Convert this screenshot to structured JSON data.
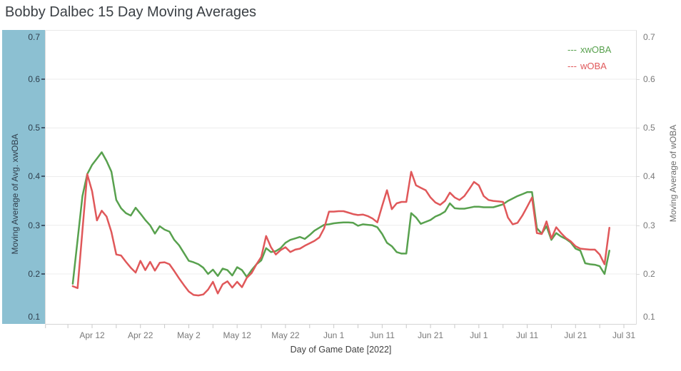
{
  "title": "Bobby Dalbec 15 Day Moving Averages",
  "legend": {
    "items": [
      {
        "sample": "---",
        "label": "xwOBA",
        "color": "#58a14e"
      },
      {
        "sample": "---",
        "label": "wOBA",
        "color": "#e0585a"
      }
    ]
  },
  "axes": {
    "left": {
      "title": "Moving Average of Avg. xwOBA",
      "ticks": [
        "0.7",
        "0.6",
        "0.5",
        "0.4",
        "0.3",
        "0.2",
        "0.1"
      ],
      "band_color": "#8cc0d2",
      "text_color": "#2f3e4c",
      "tick_mark_color": "#41586c"
    },
    "right": {
      "title": "Moving Average of wOBA",
      "ticks": [
        "0.7",
        "0.6",
        "0.5",
        "0.4",
        "0.3",
        "0.2",
        "0.1"
      ],
      "tick_mark_color": "#d9d9d9"
    },
    "x": {
      "title": "Day of Game Date [2022]",
      "ticks": [
        {
          "label": "Apr 12",
          "date": "4/12"
        },
        {
          "label": "Apr 22",
          "date": "4/22"
        },
        {
          "label": "May 2",
          "date": "5/2"
        },
        {
          "label": "May 12",
          "date": "5/12"
        },
        {
          "label": "May 22",
          "date": "5/22"
        },
        {
          "label": "Jun 1",
          "date": "6/1"
        },
        {
          "label": "Jun 11",
          "date": "6/11"
        },
        {
          "label": "Jun 21",
          "date": "6/21"
        },
        {
          "label": "Jul 1",
          "date": "7/1"
        },
        {
          "label": "Jul 11",
          "date": "7/11"
        },
        {
          "label": "Jul 21",
          "date": "7/21"
        },
        {
          "label": "Jul 31",
          "date": "7/31"
        }
      ]
    }
  },
  "chart_data": {
    "type": "line",
    "title": "Bobby Dalbec 15 Day Moving Averages",
    "xlabel": "Day of Game Date [2022]",
    "ylabel_left": "Moving Average of Avg. xwOBA",
    "ylabel_right": "Moving Average of wOBA",
    "ylim": [
      0.1,
      0.7
    ],
    "x_domain_dates": [
      "4/2",
      "8/2"
    ],
    "grid": true,
    "gridline_color": "#ececec",
    "border_color": "#d4d4d4",
    "legend_position": "top-right",
    "series": [
      {
        "name": "xwOBA",
        "axis": "left",
        "color": "#58a14e",
        "points": [
          [
            "4/8",
            0.18
          ],
          [
            "4/9",
            0.27
          ],
          [
            "4/10",
            0.36
          ],
          [
            "4/11",
            0.405
          ],
          [
            "4/12",
            0.424
          ],
          [
            "4/13",
            0.437
          ],
          [
            "4/14",
            0.45
          ],
          [
            "4/15",
            0.432
          ],
          [
            "4/16",
            0.41
          ],
          [
            "4/17",
            0.352
          ],
          [
            "4/18",
            0.335
          ],
          [
            "4/19",
            0.325
          ],
          [
            "4/20",
            0.32
          ],
          [
            "4/21",
            0.336
          ],
          [
            "4/22",
            0.324
          ],
          [
            "4/23",
            0.311
          ],
          [
            "4/24",
            0.3
          ],
          [
            "4/25",
            0.283
          ],
          [
            "4/26",
            0.298
          ],
          [
            "4/27",
            0.291
          ],
          [
            "4/28",
            0.287
          ],
          [
            "4/29",
            0.27
          ],
          [
            "4/30",
            0.259
          ],
          [
            "5/1",
            0.243
          ],
          [
            "5/2",
            0.227
          ],
          [
            "5/3",
            0.224
          ],
          [
            "5/4",
            0.22
          ],
          [
            "5/5",
            0.213
          ],
          [
            "5/6",
            0.2
          ],
          [
            "5/7",
            0.209
          ],
          [
            "5/8",
            0.196
          ],
          [
            "5/9",
            0.211
          ],
          [
            "5/10",
            0.208
          ],
          [
            "5/11",
            0.197
          ],
          [
            "5/12",
            0.214
          ],
          [
            "5/13",
            0.208
          ],
          [
            "5/14",
            0.194
          ],
          [
            "5/15",
            0.208
          ],
          [
            "5/16",
            0.22
          ],
          [
            "5/17",
            0.228
          ],
          [
            "5/18",
            0.253
          ],
          [
            "5/19",
            0.245
          ],
          [
            "5/20",
            0.247
          ],
          [
            "5/21",
            0.253
          ],
          [
            "5/22",
            0.264
          ],
          [
            "5/23",
            0.27
          ],
          [
            "5/24",
            0.273
          ],
          [
            "5/25",
            0.276
          ],
          [
            "5/26",
            0.272
          ],
          [
            "5/27",
            0.28
          ],
          [
            "5/28",
            0.289
          ],
          [
            "5/29",
            0.295
          ],
          [
            "5/30",
            0.301
          ],
          [
            "5/31",
            0.302
          ],
          [
            "6/1",
            0.304
          ],
          [
            "6/2",
            0.305
          ],
          [
            "6/3",
            0.306
          ],
          [
            "6/4",
            0.306
          ],
          [
            "6/5",
            0.305
          ],
          [
            "6/6",
            0.299
          ],
          [
            "6/7",
            0.302
          ],
          [
            "6/8",
            0.301
          ],
          [
            "6/9",
            0.3
          ],
          [
            "6/10",
            0.296
          ],
          [
            "6/11",
            0.282
          ],
          [
            "6/12",
            0.264
          ],
          [
            "6/13",
            0.257
          ],
          [
            "6/14",
            0.245
          ],
          [
            "6/15",
            0.242
          ],
          [
            "6/16",
            0.242
          ],
          [
            "6/17",
            0.325
          ],
          [
            "6/18",
            0.316
          ],
          [
            "6/19",
            0.303
          ],
          [
            "6/20",
            0.307
          ],
          [
            "6/21",
            0.311
          ],
          [
            "6/22",
            0.318
          ],
          [
            "6/23",
            0.322
          ],
          [
            "6/24",
            0.328
          ],
          [
            "6/25",
            0.345
          ],
          [
            "6/26",
            0.335
          ],
          [
            "6/27",
            0.334
          ],
          [
            "6/28",
            0.334
          ],
          [
            "6/29",
            0.336
          ],
          [
            "6/30",
            0.338
          ],
          [
            "7/1",
            0.338
          ],
          [
            "7/2",
            0.337
          ],
          [
            "7/3",
            0.337
          ],
          [
            "7/4",
            0.337
          ],
          [
            "7/5",
            0.34
          ],
          [
            "7/6",
            0.343
          ],
          [
            "7/7",
            0.35
          ],
          [
            "7/8",
            0.355
          ],
          [
            "7/9",
            0.36
          ],
          [
            "7/10",
            0.364
          ],
          [
            "7/11",
            0.368
          ],
          [
            "7/12",
            0.368
          ],
          [
            "7/13",
            0.294
          ],
          [
            "7/14",
            0.283
          ],
          [
            "7/15",
            0.298
          ],
          [
            "7/16",
            0.27
          ],
          [
            "7/17",
            0.284
          ],
          [
            "7/18",
            0.277
          ],
          [
            "7/19",
            0.272
          ],
          [
            "7/20",
            0.265
          ],
          [
            "7/21",
            0.252
          ],
          [
            "7/22",
            0.248
          ],
          [
            "7/23",
            0.222
          ],
          [
            "7/24",
            0.22
          ],
          [
            "7/25",
            0.219
          ],
          [
            "7/26",
            0.216
          ],
          [
            "7/27",
            0.2
          ],
          [
            "7/28",
            0.248
          ]
        ]
      },
      {
        "name": "wOBA",
        "axis": "right",
        "color": "#e0585a",
        "points": [
          [
            "4/8",
            0.175
          ],
          [
            "4/9",
            0.171
          ],
          [
            "4/10",
            0.29
          ],
          [
            "4/11",
            0.405
          ],
          [
            "4/12",
            0.37
          ],
          [
            "4/13",
            0.31
          ],
          [
            "4/14",
            0.33
          ],
          [
            "4/15",
            0.318
          ],
          [
            "4/16",
            0.286
          ],
          [
            "4/17",
            0.24
          ],
          [
            "4/18",
            0.238
          ],
          [
            "4/19",
            0.225
          ],
          [
            "4/20",
            0.213
          ],
          [
            "4/21",
            0.203
          ],
          [
            "4/22",
            0.227
          ],
          [
            "4/23",
            0.208
          ],
          [
            "4/24",
            0.225
          ],
          [
            "4/25",
            0.207
          ],
          [
            "4/26",
            0.223
          ],
          [
            "4/27",
            0.224
          ],
          [
            "4/28",
            0.22
          ],
          [
            "4/29",
            0.206
          ],
          [
            "4/30",
            0.191
          ],
          [
            "5/1",
            0.177
          ],
          [
            "5/2",
            0.164
          ],
          [
            "5/3",
            0.157
          ],
          [
            "5/4",
            0.156
          ],
          [
            "5/5",
            0.158
          ],
          [
            "5/6",
            0.168
          ],
          [
            "5/7",
            0.184
          ],
          [
            "5/8",
            0.16
          ],
          [
            "5/9",
            0.179
          ],
          [
            "5/10",
            0.185
          ],
          [
            "5/11",
            0.172
          ],
          [
            "5/12",
            0.184
          ],
          [
            "5/13",
            0.173
          ],
          [
            "5/14",
            0.192
          ],
          [
            "5/15",
            0.202
          ],
          [
            "5/16",
            0.22
          ],
          [
            "5/17",
            0.235
          ],
          [
            "5/18",
            0.278
          ],
          [
            "5/19",
            0.255
          ],
          [
            "5/20",
            0.24
          ],
          [
            "5/21",
            0.249
          ],
          [
            "5/22",
            0.255
          ],
          [
            "5/23",
            0.245
          ],
          [
            "5/24",
            0.25
          ],
          [
            "5/25",
            0.252
          ],
          [
            "5/26",
            0.258
          ],
          [
            "5/27",
            0.263
          ],
          [
            "5/28",
            0.268
          ],
          [
            "5/29",
            0.275
          ],
          [
            "5/30",
            0.294
          ],
          [
            "5/31",
            0.328
          ],
          [
            "6/1",
            0.328
          ],
          [
            "6/2",
            0.329
          ],
          [
            "6/3",
            0.329
          ],
          [
            "6/4",
            0.326
          ],
          [
            "6/5",
            0.323
          ],
          [
            "6/6",
            0.321
          ],
          [
            "6/7",
            0.322
          ],
          [
            "6/8",
            0.319
          ],
          [
            "6/9",
            0.314
          ],
          [
            "6/10",
            0.306
          ],
          [
            "6/11",
            0.34
          ],
          [
            "6/12",
            0.372
          ],
          [
            "6/13",
            0.333
          ],
          [
            "6/14",
            0.345
          ],
          [
            "6/15",
            0.348
          ],
          [
            "6/16",
            0.348
          ],
          [
            "6/17",
            0.41
          ],
          [
            "6/18",
            0.382
          ],
          [
            "6/19",
            0.377
          ],
          [
            "6/20",
            0.372
          ],
          [
            "6/21",
            0.357
          ],
          [
            "6/22",
            0.347
          ],
          [
            "6/23",
            0.342
          ],
          [
            "6/24",
            0.35
          ],
          [
            "6/25",
            0.367
          ],
          [
            "6/26",
            0.357
          ],
          [
            "6/27",
            0.352
          ],
          [
            "6/28",
            0.36
          ],
          [
            "6/29",
            0.374
          ],
          [
            "6/30",
            0.389
          ],
          [
            "7/1",
            0.382
          ],
          [
            "7/2",
            0.36
          ],
          [
            "7/3",
            0.352
          ],
          [
            "7/4",
            0.35
          ],
          [
            "7/5",
            0.349
          ],
          [
            "7/6",
            0.348
          ],
          [
            "7/7",
            0.316
          ],
          [
            "7/8",
            0.302
          ],
          [
            "7/9",
            0.305
          ],
          [
            "7/10",
            0.32
          ],
          [
            "7/11",
            0.338
          ],
          [
            "7/12",
            0.357
          ],
          [
            "7/13",
            0.284
          ],
          [
            "7/14",
            0.282
          ],
          [
            "7/15",
            0.308
          ],
          [
            "7/16",
            0.273
          ],
          [
            "7/17",
            0.296
          ],
          [
            "7/18",
            0.284
          ],
          [
            "7/19",
            0.274
          ],
          [
            "7/20",
            0.267
          ],
          [
            "7/21",
            0.257
          ],
          [
            "7/22",
            0.252
          ],
          [
            "7/23",
            0.251
          ],
          [
            "7/24",
            0.25
          ],
          [
            "7/25",
            0.25
          ],
          [
            "7/26",
            0.24
          ],
          [
            "7/27",
            0.22
          ],
          [
            "7/28",
            0.295
          ]
        ]
      }
    ]
  }
}
